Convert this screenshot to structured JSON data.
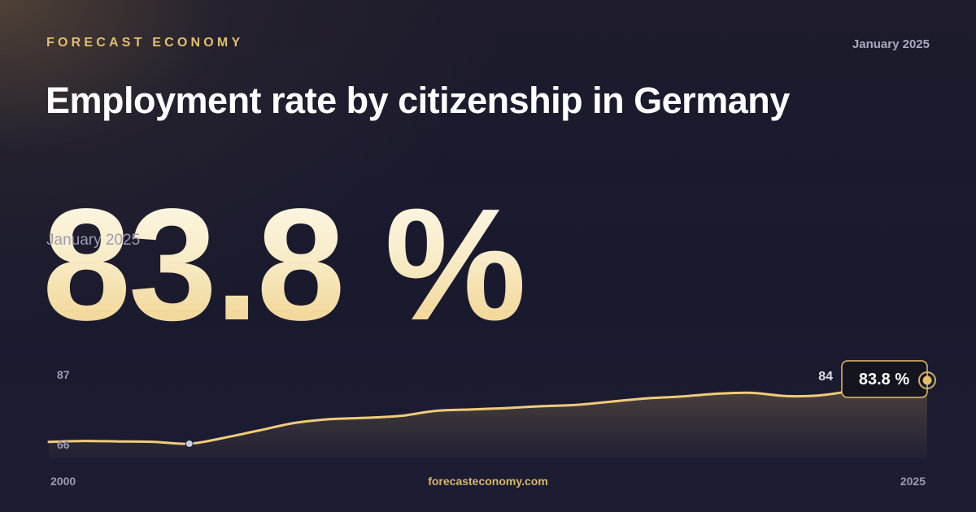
{
  "header": {
    "brand": "FORECAST ECONOMY",
    "date": "January 2025",
    "title": "Employment rate by citizenship in Germany"
  },
  "headline": {
    "value": "83.8 %",
    "period": "January 2025"
  },
  "footer": {
    "site": "forecasteconomy.com"
  },
  "colors": {
    "accent": "#e3bf6c",
    "line": "#f0cc7a",
    "highlight_point": "#c9cce0"
  },
  "chart_data": {
    "type": "area",
    "y_tick_labels": [
      "87",
      "66"
    ],
    "x_tick_labels": [
      "2000",
      "2025"
    ],
    "ylim": [
      66,
      87
    ],
    "xlim": [
      2000,
      2025
    ],
    "end_label": "84",
    "badge_label": "83.8 %",
    "grid": false,
    "series": [
      {
        "x": [
          2000,
          2001,
          2002,
          2003,
          2004,
          2005,
          2006,
          2007,
          2008,
          2009,
          2010,
          2011,
          2012,
          2013,
          2014,
          2015,
          2016,
          2017,
          2018,
          2019,
          2020,
          2021,
          2022,
          2023,
          2024,
          2025
        ],
        "y": [
          70.5,
          70.7,
          70.6,
          70.5,
          70.1,
          71.4,
          73.0,
          74.6,
          75.4,
          75.7,
          76.1,
          77.2,
          77.5,
          77.8,
          78.2,
          78.5,
          79.2,
          79.9,
          80.3,
          80.9,
          81.1,
          80.4,
          80.6,
          81.7,
          82.6,
          83.8
        ]
      }
    ],
    "highlight_point": {
      "x": 2004,
      "y": 70.1
    }
  }
}
